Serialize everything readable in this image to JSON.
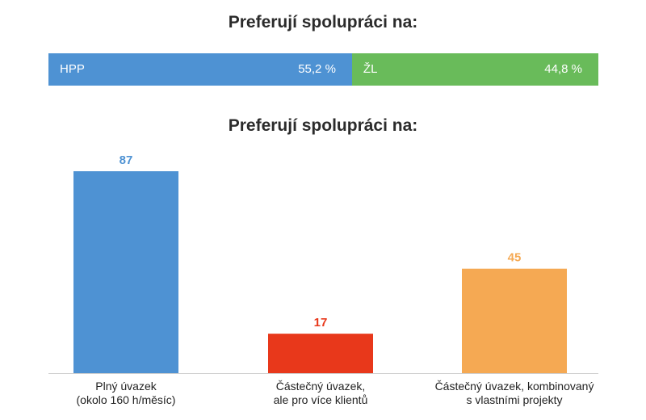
{
  "top_chart": {
    "title": "Preferují spolupráci na:",
    "segments": [
      {
        "label": "HPP",
        "value_label": "55,2 %",
        "value": 55.2,
        "color": "#4E92D3"
      },
      {
        "label": "ŽL",
        "value_label": "44,8 %",
        "value": 44.8,
        "color": "#69BB5A"
      }
    ]
  },
  "chart_data": [
    {
      "type": "bar",
      "orientation": "horizontal-stacked",
      "title": "Preferují spolupráci na:",
      "categories": [
        "HPP",
        "ŽL"
      ],
      "values": [
        55.2,
        44.8
      ],
      "value_labels": [
        "55,2 %",
        "44,8 %"
      ],
      "colors": [
        "#4E92D3",
        "#69BB5A"
      ]
    },
    {
      "type": "bar",
      "title": "Preferují spolupráci na:",
      "categories": [
        "Plný úvazek\n(okolo 160 h/měsíc)",
        "Částečný úvazek,\nale pro více klientů",
        "Částečný úvazek, kombinovaný\ns vlastními projekty"
      ],
      "values": [
        87,
        17,
        45
      ],
      "colors": [
        "#4E92D3",
        "#E8381B",
        "#F5A953"
      ],
      "ylim": [
        0,
        87
      ],
      "grid": false
    }
  ]
}
